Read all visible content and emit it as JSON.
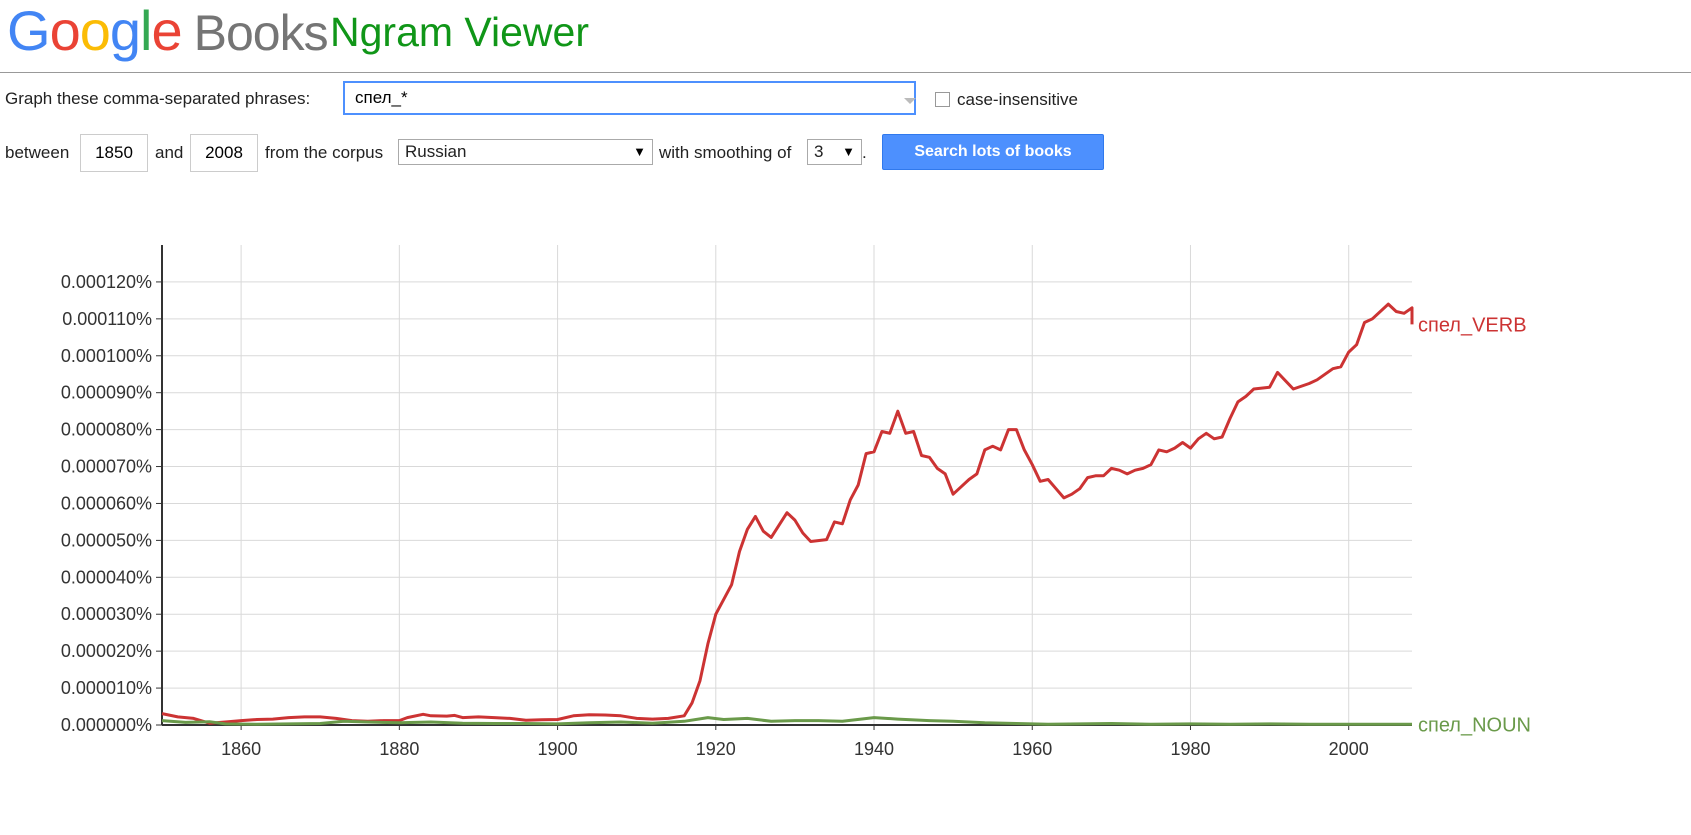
{
  "header": {
    "logo_letters": [
      {
        "char": "G",
        "color": "blue"
      },
      {
        "char": "o",
        "color": "red"
      },
      {
        "char": "o",
        "color": "yellow"
      },
      {
        "char": "g",
        "color": "blue"
      },
      {
        "char": "l",
        "color": "green"
      },
      {
        "char": "e",
        "color": "red"
      }
    ],
    "logo_books": "Books",
    "app_name": "Ngram Viewer"
  },
  "form": {
    "phrases_label": "Graph these comma-separated phrases:",
    "phrases_value": "спел_*",
    "case_insensitive_label": "case-insensitive",
    "between_label": "between",
    "start_year": "1850",
    "and_label": "and",
    "end_year": "2008",
    "corpus_label": "from the corpus",
    "corpus_value": "Russian",
    "smoothing_label": "with smoothing of",
    "smoothing_value": "3",
    "period": ".",
    "search_button": "Search lots of books"
  },
  "chart_data": {
    "type": "line",
    "xlim": [
      1850,
      2008
    ],
    "ylim": [
      0,
      0.00013
    ],
    "x_ticks": [
      1860,
      1880,
      1900,
      1920,
      1940,
      1960,
      1980,
      2000
    ],
    "x_tick_labels": [
      "1860",
      "1880",
      "1900",
      "1920",
      "1940",
      "1960",
      "1980",
      "2000"
    ],
    "y_ticks": [
      0,
      1e-05,
      2e-05,
      3e-05,
      4e-05,
      5e-05,
      6e-05,
      7e-05,
      8e-05,
      9e-05,
      0.0001,
      0.00011,
      0.00012
    ],
    "y_tick_labels": [
      "0.000000%",
      "0.000010%",
      "0.000020%",
      "0.000030%",
      "0.000040%",
      "0.000050%",
      "0.000060%",
      "0.000070%",
      "0.000080%",
      "0.000090%",
      "0.000100%",
      "0.000110%",
      "0.000120%"
    ],
    "grid": true,
    "series": [
      {
        "name": "спел_VERB",
        "color": "#cc3333",
        "points": [
          [
            1850,
            3.1e-06
          ],
          [
            1852,
            2.2e-06
          ],
          [
            1854,
            1.8e-06
          ],
          [
            1856,
            5e-07
          ],
          [
            1858,
            8e-07
          ],
          [
            1860,
            1.2e-06
          ],
          [
            1862,
            1.5e-06
          ],
          [
            1864,
            1.6e-06
          ],
          [
            1866,
            2e-06
          ],
          [
            1868,
            2.2e-06
          ],
          [
            1870,
            2.2e-06
          ],
          [
            1872,
            1.8e-06
          ],
          [
            1874,
            1.2e-06
          ],
          [
            1876,
            1e-06
          ],
          [
            1878,
            1.2e-06
          ],
          [
            1880,
            1.2e-06
          ],
          [
            1881,
            2e-06
          ],
          [
            1883,
            2.9e-06
          ],
          [
            1884,
            2.5e-06
          ],
          [
            1886,
            2.4e-06
          ],
          [
            1887,
            2.6e-06
          ],
          [
            1888,
            2e-06
          ],
          [
            1890,
            2.2e-06
          ],
          [
            1892,
            2e-06
          ],
          [
            1894,
            1.8e-06
          ],
          [
            1896,
            1.3e-06
          ],
          [
            1898,
            1.4e-06
          ],
          [
            1900,
            1.5e-06
          ],
          [
            1902,
            2.5e-06
          ],
          [
            1904,
            2.8e-06
          ],
          [
            1906,
            2.7e-06
          ],
          [
            1908,
            2.5e-06
          ],
          [
            1910,
            1.8e-06
          ],
          [
            1912,
            1.6e-06
          ],
          [
            1914,
            1.8e-06
          ],
          [
            1916,
            2.5e-06
          ],
          [
            1917,
            6e-06
          ],
          [
            1918,
            1.2e-05
          ],
          [
            1919,
            2.2e-05
          ],
          [
            1920,
            3e-05
          ],
          [
            1922,
            3.8e-05
          ],
          [
            1923,
            4.7e-05
          ],
          [
            1924,
            5.3e-05
          ],
          [
            1925,
            5.65e-05
          ],
          [
            1926,
            5.25e-05
          ],
          [
            1927,
            5.08e-05
          ],
          [
            1929,
            5.75e-05
          ],
          [
            1930,
            5.55e-05
          ],
          [
            1931,
            5.2e-05
          ],
          [
            1932,
            4.97e-05
          ],
          [
            1934,
            5.02e-05
          ],
          [
            1935,
            5.5e-05
          ],
          [
            1936,
            5.45e-05
          ],
          [
            1937,
            6.1e-05
          ],
          [
            1938,
            6.5e-05
          ],
          [
            1939,
            7.35e-05
          ],
          [
            1940,
            7.4e-05
          ],
          [
            1941,
            7.95e-05
          ],
          [
            1942,
            7.9e-05
          ],
          [
            1943,
            8.5e-05
          ],
          [
            1944,
            7.9e-05
          ],
          [
            1945,
            7.95e-05
          ],
          [
            1946,
            7.3e-05
          ],
          [
            1947,
            7.25e-05
          ],
          [
            1948,
            6.95e-05
          ],
          [
            1949,
            6.8e-05
          ],
          [
            1950,
            6.25e-05
          ],
          [
            1951,
            6.45e-05
          ],
          [
            1952,
            6.65e-05
          ],
          [
            1953,
            6.8e-05
          ],
          [
            1954,
            7.45e-05
          ],
          [
            1955,
            7.55e-05
          ],
          [
            1956,
            7.45e-05
          ],
          [
            1957,
            8e-05
          ],
          [
            1958,
            8e-05
          ],
          [
            1959,
            7.45e-05
          ],
          [
            1960,
            7.05e-05
          ],
          [
            1961,
            6.6e-05
          ],
          [
            1962,
            6.65e-05
          ],
          [
            1963,
            6.4e-05
          ],
          [
            1964,
            6.15e-05
          ],
          [
            1965,
            6.25e-05
          ],
          [
            1966,
            6.4e-05
          ],
          [
            1967,
            6.7e-05
          ],
          [
            1968,
            6.75e-05
          ],
          [
            1969,
            6.75e-05
          ],
          [
            1970,
            6.95e-05
          ],
          [
            1971,
            6.9e-05
          ],
          [
            1972,
            6.8e-05
          ],
          [
            1973,
            6.9e-05
          ],
          [
            1974,
            6.95e-05
          ],
          [
            1975,
            7.05e-05
          ],
          [
            1976,
            7.45e-05
          ],
          [
            1977,
            7.4e-05
          ],
          [
            1978,
            7.5e-05
          ],
          [
            1979,
            7.65e-05
          ],
          [
            1980,
            7.5e-05
          ],
          [
            1981,
            7.75e-05
          ],
          [
            1982,
            7.9e-05
          ],
          [
            1983,
            7.75e-05
          ],
          [
            1984,
            7.8e-05
          ],
          [
            1985,
            8.3e-05
          ],
          [
            1986,
            8.75e-05
          ],
          [
            1987,
            8.9e-05
          ],
          [
            1988,
            9.1e-05
          ],
          [
            1990,
            9.15e-05
          ],
          [
            1991,
            9.55e-05
          ],
          [
            1993,
            9.1e-05
          ],
          [
            1995,
            9.25e-05
          ],
          [
            1996,
            9.35e-05
          ],
          [
            1998,
            9.65e-05
          ],
          [
            1999,
            9.7e-05
          ],
          [
            2000,
            0.000101
          ],
          [
            2001,
            0.000103
          ],
          [
            2002,
            0.000109
          ],
          [
            2003,
            0.00011
          ],
          [
            2005,
            0.000114
          ],
          [
            2006,
            0.000112
          ],
          [
            2007,
            0.0001115
          ],
          [
            2008,
            0.000113
          ],
          [
            2009,
            0.0001085
          ]
        ]
      },
      {
        "name": "спел_NOUN",
        "color": "#6a9a4a",
        "points": [
          [
            1850,
            1.2e-06
          ],
          [
            1853,
            7e-07
          ],
          [
            1856,
            9e-07
          ],
          [
            1858,
            3e-07
          ],
          [
            1862,
            2e-07
          ],
          [
            1866,
            3e-07
          ],
          [
            1870,
            4e-07
          ],
          [
            1873,
            1e-06
          ],
          [
            1876,
            8e-07
          ],
          [
            1880,
            6e-07
          ],
          [
            1884,
            8e-07
          ],
          [
            1888,
            5e-07
          ],
          [
            1892,
            4e-07
          ],
          [
            1896,
            4e-07
          ],
          [
            1900,
            3e-07
          ],
          [
            1904,
            6e-07
          ],
          [
            1908,
            8e-07
          ],
          [
            1912,
            5e-07
          ],
          [
            1916,
            1e-06
          ],
          [
            1919,
            2e-06
          ],
          [
            1921,
            1.5e-06
          ],
          [
            1924,
            1.8e-06
          ],
          [
            1927,
            1e-06
          ],
          [
            1930,
            1.2e-06
          ],
          [
            1933,
            1.2e-06
          ],
          [
            1936,
            1e-06
          ],
          [
            1940,
            2e-06
          ],
          [
            1943,
            1.6e-06
          ],
          [
            1947,
            1.2e-06
          ],
          [
            1950,
            1e-06
          ],
          [
            1954,
            6e-07
          ],
          [
            1958,
            4e-07
          ],
          [
            1962,
            2e-07
          ],
          [
            1966,
            3e-07
          ],
          [
            1970,
            4e-07
          ],
          [
            1975,
            2e-07
          ],
          [
            1980,
            3e-07
          ],
          [
            1985,
            2e-07
          ],
          [
            1990,
            3e-07
          ],
          [
            1995,
            2e-07
          ],
          [
            2000,
            2e-07
          ],
          [
            2005,
            2e-07
          ],
          [
            2009,
            2e-07
          ]
        ]
      }
    ]
  }
}
